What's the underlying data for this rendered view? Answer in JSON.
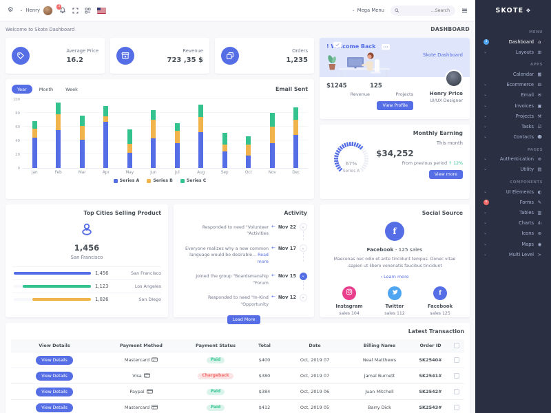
{
  "brand": {
    "name": "SKOTE"
  },
  "topbar": {
    "user_name": "Henry",
    "notification_count": "3",
    "mega_menu_label": "Mega Menu",
    "search_placeholder": "Search..."
  },
  "breadcrumb": {
    "welcome_text": "Welcome to Skote Dashboard",
    "page_title": "DASHBOARD"
  },
  "stats": [
    {
      "label": "Average Price",
      "value": "16.2"
    },
    {
      "label": "Revenue",
      "value": "723 ,35 $"
    },
    {
      "label": "Orders",
      "value": "1,235"
    }
  ],
  "welcome_card": {
    "title": "! Welcome Back",
    "subtitle": "Skote Dashboard",
    "revenue_value": "$1245",
    "revenue_label": "Revenue",
    "projects_value": "125",
    "projects_label": "Projects",
    "profile_button": "View Profile",
    "user_name": "Henry Price",
    "user_role": "UI/UX Designer"
  },
  "email_sent": {
    "title": "Email Sent",
    "tabs": [
      {
        "label": "Year",
        "name": "tab-year",
        "active": true
      },
      {
        "label": "Month",
        "name": "tab-month"
      },
      {
        "label": "Week",
        "name": "tab-week"
      }
    ]
  },
  "monthly_earning": {
    "title": "Monthly Earning",
    "period": "This month",
    "amount": "$34,252",
    "comparison_text": "From previous period",
    "delta_arrow": "↑",
    "delta": "12%",
    "gauge_value": "67%",
    "gauge_label": "Series A",
    "button": "View more"
  },
  "top_cities": {
    "title": "Top Cities Selling Product",
    "highlight_value": "1,456",
    "highlight_city": "San Francisco",
    "rows": [
      {
        "city": "San Francisco",
        "value": "1,456",
        "pct": 100,
        "color": "#556ee6"
      },
      {
        "city": "Los Angeles",
        "value": "1,123",
        "pct": 88,
        "color": "#34c38f"
      },
      {
        "city": "San Diego",
        "value": "1,026",
        "pct": 76,
        "color": "#f1b44c"
      }
    ]
  },
  "activity": {
    "title": "Activity",
    "items": [
      {
        "date": "Nov 22",
        "text": "Responded to need \"Volunteer Activities\""
      },
      {
        "date": "Nov 17",
        "text": "Everyone realizes why a new common language would be desirable...",
        "link": "Read more"
      },
      {
        "date": "Nov 15",
        "text": "Joined the group \"Boardsmanship Forum\"",
        "active": true
      },
      {
        "date": "Nov 12",
        "text": "Responded to need \"In-Kind Opportunity\""
      }
    ],
    "button": "Load More"
  },
  "social": {
    "title": "Social Source",
    "main_name": "Facebook",
    "main_sales": "- 125 sales",
    "description": "Maecenas nec odio et ante tincidunt tempus. Donec vitae sapien ut libero venenatis faucibus tincidunt.",
    "learn_more": "Learn more",
    "items": [
      {
        "name": "Facebook",
        "sales": "sales 125",
        "color": "#556ee6",
        "el_name": "social-item-facebook",
        "is_facebook": true
      },
      {
        "name": "Twitter",
        "sales": "sales 112",
        "color": "#50a5f1",
        "el_name": "social-item-twitter",
        "is_twitter": true
      },
      {
        "name": "Instagram",
        "sales": "sales 104",
        "color": "#e83e8c",
        "el_name": "social-item-instagram",
        "is_instagram": true
      }
    ]
  },
  "transactions": {
    "title": "Latest Transaction",
    "headers": {
      "view_details": "View Details",
      "method": "Payment Method",
      "status": "Payment Status",
      "total": "Total",
      "date": "Date",
      "billing": "Billing Name",
      "order": "Order ID"
    },
    "rows": [
      {
        "button": "View Details",
        "method": "Mastercard",
        "status": "Paid",
        "total": "$400",
        "date": "Oct, 2019 07",
        "billing_name": "Neal Matthews",
        "order_id": "SK2540#"
      },
      {
        "button": "View Details",
        "method": "Visa",
        "status": "Chargeback",
        "is_chargeback": true,
        "total": "$380",
        "date": "Oct, 2019 07",
        "billing_name": "Jamal Burnett",
        "order_id": "SK2541#"
      },
      {
        "button": "View Details",
        "method": "Paypal",
        "status": "Paid",
        "total": "$384",
        "date": "Oct, 2019 06",
        "billing_name": "Juan Mitchell",
        "order_id": "SK2542#"
      },
      {
        "button": "View Details",
        "method": "Mastercard",
        "status": "Paid",
        "total": "$412",
        "date": "Oct, 2019 05",
        "billing_name": "Barry Dick",
        "order_id": "SK2543#"
      }
    ]
  },
  "sidebar": {
    "items": [
      {
        "is_label": true,
        "label": "MENU"
      },
      {
        "is_item": true,
        "name": "sidebar-item-dashboard",
        "icon": "home-icon",
        "glyph": "⌂",
        "label": "Dashboard",
        "badge": "3",
        "badge_color": "#50a5f1",
        "active": true
      },
      {
        "is_item": true,
        "name": "sidebar-item-layouts",
        "icon": "layout-icon",
        "glyph": "⊞",
        "label": "Layouts",
        "chevron": true
      },
      {
        "is_label": true,
        "label": "APPS"
      },
      {
        "is_item": true,
        "name": "sidebar-item-calendar",
        "icon": "calendar-icon",
        "glyph": "▦",
        "label": "Calendar"
      },
      {
        "is_item": true,
        "name": "sidebar-item-ecommerce",
        "icon": "store-icon",
        "glyph": "⊟",
        "label": "Ecommerce",
        "chevron": true
      },
      {
        "is_item": true,
        "name": "sidebar-item-email",
        "icon": "envelope-icon",
        "glyph": "✉",
        "label": "Email",
        "chevron": true
      },
      {
        "is_item": true,
        "name": "sidebar-item-invoices",
        "icon": "receipt-icon",
        "glyph": "▣",
        "label": "Invoices",
        "chevron": true
      },
      {
        "is_item": true,
        "name": "sidebar-item-projects",
        "icon": "briefcase-icon",
        "glyph": "⚒",
        "label": "Projects",
        "chevron": true
      },
      {
        "is_item": true,
        "name": "sidebar-item-tasks",
        "icon": "task-icon",
        "glyph": "☑",
        "label": "Tasks",
        "chevron": true
      },
      {
        "is_item": true,
        "name": "sidebar-item-contacts",
        "icon": "user-icon",
        "glyph": "☻",
        "label": "Contacts",
        "chevron": true
      },
      {
        "is_label": true,
        "label": "PAGES"
      },
      {
        "is_item": true,
        "name": "sidebar-item-authentication",
        "icon": "user-circle-icon",
        "glyph": "⊚",
        "label": "Authentication",
        "chevron": true
      },
      {
        "is_item": true,
        "name": "sidebar-item-utility",
        "icon": "file-icon",
        "glyph": "▤",
        "label": "Utility",
        "chevron": true
      },
      {
        "is_label": true,
        "label": "COMPONENTS"
      },
      {
        "is_item": true,
        "name": "sidebar-item-ui-elements",
        "icon": "tone-icon",
        "glyph": "◐",
        "label": "UI Elements",
        "chevron": true
      },
      {
        "is_item": true,
        "name": "sidebar-item-forms",
        "icon": "pencil-icon",
        "glyph": "✎",
        "label": "Forms",
        "badge": "6",
        "badge_color": "#f46a6a"
      },
      {
        "is_item": true,
        "name": "sidebar-item-tables",
        "icon": "table-icon",
        "glyph": "▥",
        "label": "Tables",
        "chevron": true
      },
      {
        "is_item": true,
        "name": "sidebar-item-charts",
        "icon": "chart-icon",
        "glyph": "ılı",
        "label": "Charts",
        "chevron": true
      },
      {
        "is_item": true,
        "name": "sidebar-item-icons",
        "icon": "aperture-icon",
        "glyph": "⊛",
        "label": "Icons",
        "chevron": true
      },
      {
        "is_item": true,
        "name": "sidebar-item-maps",
        "icon": "map-pin-icon",
        "glyph": "◉",
        "label": "Maps",
        "chevron": true
      },
      {
        "is_item": true,
        "name": "sidebar-item-multi-level",
        "icon": "share-icon",
        "glyph": "≺",
        "label": "Multi Level",
        "chevron": true
      }
    ]
  },
  "chart_data": [
    {
      "id": "email-sent",
      "type": "bar",
      "stacked": true,
      "title": "Email Sent",
      "categories": [
        "Jan",
        "Feb",
        "Mar",
        "Apr",
        "May",
        "Jun",
        "Jul",
        "Aug",
        "Sep",
        "Oct",
        "Nov",
        "Dec"
      ],
      "series": [
        {
          "name": "Series A",
          "color": "#556ee6",
          "values": [
            44,
            55,
            41,
            67,
            22,
            43,
            36,
            52,
            24,
            18,
            36,
            48
          ]
        },
        {
          "name": "Series B",
          "color": "#f1b44c",
          "values": [
            13,
            23,
            20,
            8,
            13,
            27,
            18,
            22,
            10,
            16,
            24,
            22
          ]
        },
        {
          "name": "Series C",
          "color": "#34c38f",
          "values": [
            11,
            17,
            15,
            15,
            21,
            14,
            11,
            18,
            17,
            12,
            20,
            18
          ]
        }
      ],
      "ylim": [
        0,
        100
      ],
      "yticks": [
        0,
        20,
        40,
        60,
        80,
        100
      ],
      "grid": true,
      "legend_position": "bottom"
    },
    {
      "id": "monthly-earning-gauge",
      "type": "radial",
      "value": 67,
      "display": "67%",
      "label": "Series A",
      "color": "#556ee6",
      "track_color": "#edeff5",
      "start_angle": -135,
      "end_angle": 135
    }
  ]
}
